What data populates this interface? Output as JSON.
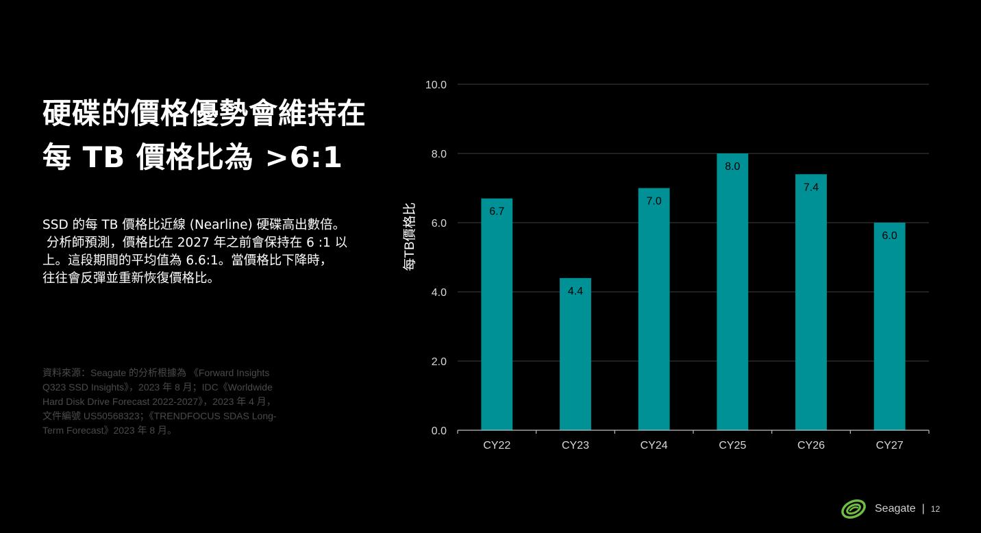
{
  "title": {
    "line1": "硬碟的價格優勢會維持在",
    "line2": "每 TB 價格比為 >6:1"
  },
  "body": {
    "lines": [
      "SSD 的每 TB 價格比近線 (Nearline) 硬碟高出數倍。",
      " 分析師預測，價格比在 2027 年之前會保持在 6 :1 以",
      "上。這段期間的平均值為 6.6:1。當價格比下降時，",
      "往往會反彈並重新恢復價格比。"
    ]
  },
  "source": {
    "lines": [
      "資料來源：Seagate 的分析根據為 《Forward Insights",
      "Q323 SSD Insights》，2023 年 8 月；IDC《Worldwide",
      "Hard Disk Drive Forecast 2022-2027》，2023 年 4 月，",
      "文件編號 US50568323；《TRENDFOCUS SDAS Long-",
      "Term Forecast》2023 年 8 月。"
    ]
  },
  "footer": {
    "brand": "Seagate",
    "separator": "|",
    "page_number": "12",
    "logo_icon": "seagate-swirl-icon"
  },
  "colors": {
    "background": "#000000",
    "bar": "#009196",
    "gridline": "#404040",
    "axis": "#bfbfbf",
    "logo": "#6ebe44"
  },
  "chart_data": {
    "type": "bar",
    "categories": [
      "CY22",
      "CY23",
      "CY24",
      "CY25",
      "CY26",
      "CY27"
    ],
    "values": [
      6.7,
      4.4,
      7.0,
      8.0,
      7.4,
      6.0
    ],
    "data_labels": [
      "6.7",
      "4.4",
      "7.0",
      "8.0",
      "7.4",
      "6.0"
    ],
    "ylabel": "每TB價格比",
    "xlabel": "",
    "ylim": [
      0,
      10
    ],
    "yticks": [
      0,
      2,
      4,
      6,
      8,
      10
    ],
    "ytick_labels": [
      "0.0",
      "2.0",
      "4.0",
      "6.0",
      "8.0",
      "10.0"
    ],
    "grid": true,
    "legend": "none"
  }
}
